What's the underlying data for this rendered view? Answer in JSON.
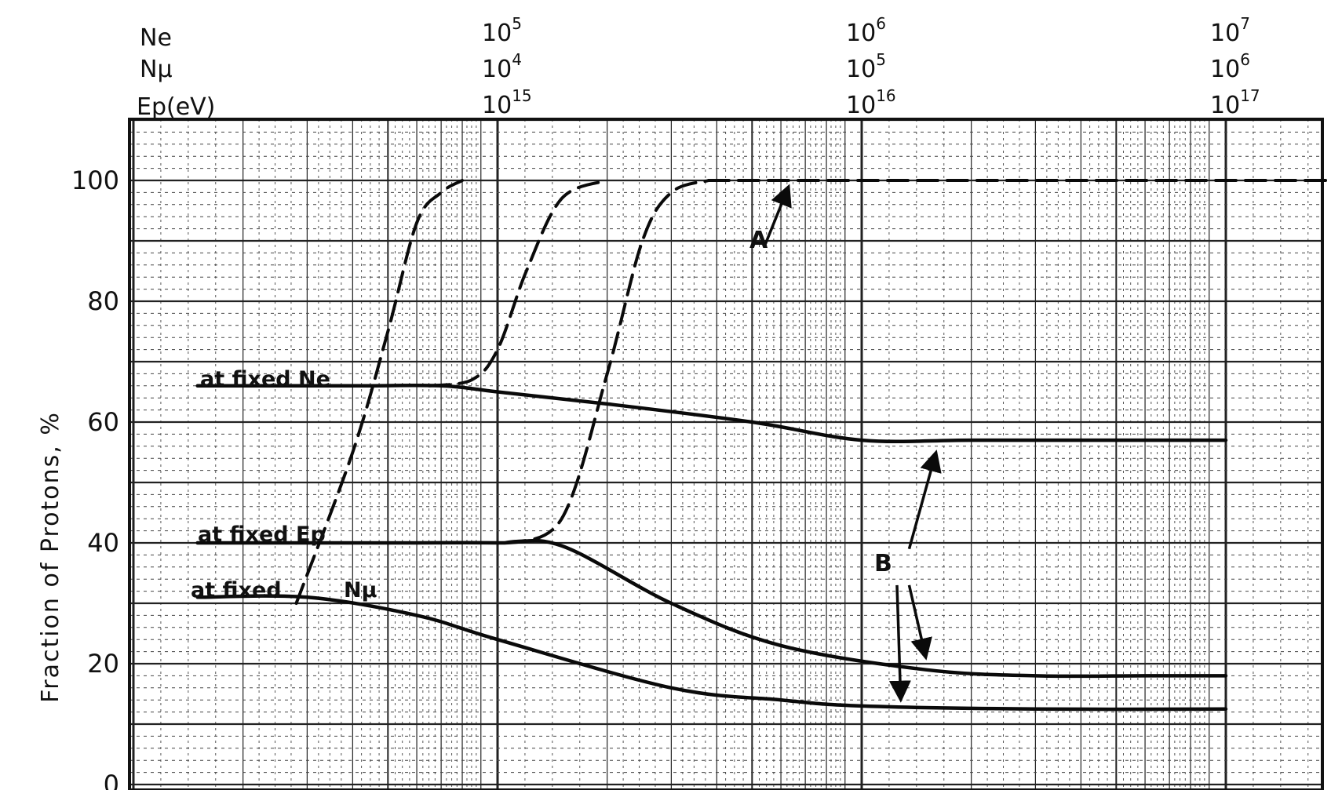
{
  "chart_data": {
    "type": "line",
    "ylabel": "Fraction of Protons, %",
    "ylim": [
      0,
      110
    ],
    "y_ticks": [
      "0",
      "20",
      "40",
      "60",
      "80",
      "100"
    ],
    "x_scale": "log",
    "x_axes": [
      {
        "label": "Ne",
        "ticks": [
          {
            "base": "10",
            "exp": "5"
          },
          {
            "base": "10",
            "exp": "6"
          },
          {
            "base": "10",
            "exp": "7"
          }
        ]
      },
      {
        "label": "Nμ",
        "ticks": [
          {
            "base": "10",
            "exp": "4"
          },
          {
            "base": "10",
            "exp": "5"
          },
          {
            "base": "10",
            "exp": "6"
          }
        ]
      },
      {
        "label": "Ep(eV)",
        "ticks": [
          {
            "base": "10",
            "exp": "15"
          },
          {
            "base": "10",
            "exp": "16"
          },
          {
            "base": "10",
            "exp": "17"
          }
        ]
      }
    ],
    "xlim_Ep_eV": [
      100000000000000.0,
      3e+17
    ],
    "grid": true,
    "series": [
      {
        "name": "at fixed Ne",
        "style": "solid",
        "x_Ep_eV": [
          150000000000000.0,
          400000000000000.0,
          700000000000000.0,
          1000000000000000.0,
          2000000000000000.0,
          5000000000000000.0,
          1e+16,
          2e+16,
          5e+16,
          1e+17
        ],
        "y": [
          66,
          66,
          66,
          65,
          63,
          60,
          57,
          57,
          57,
          57
        ]
      },
      {
        "name": "at fixed Ep",
        "style": "solid",
        "x_Ep_eV": [
          150000000000000.0,
          500000000000000.0,
          1000000000000000.0,
          1500000000000000.0,
          3000000000000000.0,
          6000000000000000.0,
          1.5e+16,
          3e+16,
          6e+16,
          1e+17
        ],
        "y": [
          40,
          40,
          40,
          39.5,
          30,
          23,
          19,
          18,
          18,
          18
        ]
      },
      {
        "name": "at fixed Nμ",
        "style": "solid",
        "x_Ep_eV": [
          150000000000000.0,
          300000000000000.0,
          600000000000000.0,
          1000000000000000.0,
          3000000000000000.0,
          6000000000000000.0,
          1e+16,
          3e+16,
          1e+17
        ],
        "y": [
          31,
          31,
          28,
          24,
          16,
          14,
          13,
          12.5,
          12.5
        ]
      },
      {
        "name": "",
        "style": "dashed",
        "x_Ep_eV": [
          280000000000000.0,
          400000000000000.0,
          500000000000000.0,
          600000000000000.0,
          700000000000000.0,
          800000000000000.0
        ],
        "y": [
          30,
          55,
          75,
          93,
          98,
          100
        ]
      },
      {
        "name": "",
        "style": "dashed",
        "x_Ep_eV": [
          650000000000000.0,
          850000000000000.0,
          1000000000000000.0,
          1200000000000000.0,
          1500000000000000.0,
          2000000000000000.0
        ],
        "y": [
          66,
          67,
          72,
          85,
          97,
          100
        ]
      },
      {
        "name": "",
        "style": "dashed",
        "x_Ep_eV": [
          1050000000000000.0,
          1500000000000000.0,
          2000000000000000.0,
          2500000000000000.0,
          3000000000000000.0,
          3800000000000000.0
        ],
        "y": [
          40,
          44,
          68,
          90,
          98,
          100
        ]
      },
      {
        "name": "",
        "style": "dashed",
        "x_Ep_eV": [
          3800000000000000.0,
          1e+16,
          3e+16,
          1e+17,
          3e+17
        ],
        "y": [
          100,
          100,
          100,
          100,
          100
        ]
      }
    ],
    "annotations": [
      {
        "text": "at fixed Ne"
      },
      {
        "text": "at fixed Ep"
      },
      {
        "text": "at fixed"
      },
      {
        "text": "Nμ"
      },
      {
        "text": "A"
      },
      {
        "text": "B"
      }
    ]
  }
}
